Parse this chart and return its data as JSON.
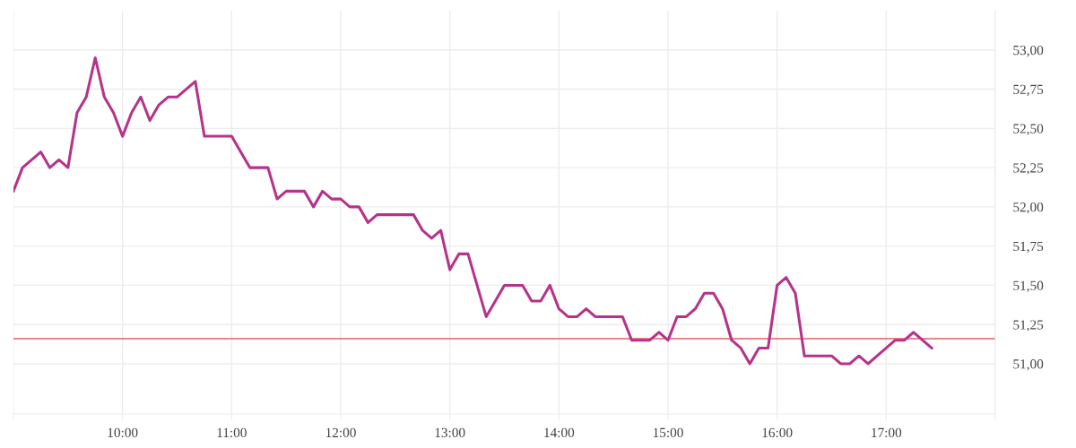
{
  "chart_data": {
    "type": "line",
    "x": [
      9.0,
      9.083,
      9.167,
      9.25,
      9.333,
      9.417,
      9.5,
      9.583,
      9.667,
      9.75,
      9.833,
      9.917,
      10.0,
      10.083,
      10.167,
      10.25,
      10.333,
      10.417,
      10.5,
      10.583,
      10.667,
      10.75,
      10.833,
      10.917,
      11.0,
      11.083,
      11.167,
      11.25,
      11.333,
      11.417,
      11.5,
      11.583,
      11.667,
      11.75,
      11.833,
      11.917,
      12.0,
      12.083,
      12.167,
      12.25,
      12.333,
      12.417,
      12.5,
      12.583,
      12.667,
      12.75,
      12.833,
      12.917,
      13.0,
      13.083,
      13.167,
      13.25,
      13.333,
      13.417,
      13.5,
      13.583,
      13.667,
      13.75,
      13.833,
      13.917,
      14.0,
      14.083,
      14.167,
      14.25,
      14.333,
      14.417,
      14.5,
      14.583,
      14.667,
      14.75,
      14.833,
      14.917,
      15.0,
      15.083,
      15.167,
      15.25,
      15.333,
      15.417,
      15.5,
      15.583,
      15.667,
      15.75,
      15.833,
      15.917,
      16.0,
      16.083,
      16.167,
      16.25,
      16.333,
      16.417,
      16.5,
      16.583,
      16.667,
      16.75,
      16.833,
      16.917,
      17.0,
      17.083,
      17.167,
      17.25,
      17.333,
      17.417
    ],
    "series": [
      {
        "color": "#b5338a",
        "values": [
          52.1,
          52.25,
          52.3,
          52.35,
          52.25,
          52.3,
          52.25,
          52.6,
          52.7,
          52.95,
          52.7,
          52.6,
          52.45,
          52.6,
          52.7,
          52.55,
          52.65,
          52.7,
          52.7,
          52.75,
          52.8,
          52.45,
          52.45,
          52.45,
          52.45,
          52.35,
          52.25,
          52.25,
          52.25,
          52.05,
          52.1,
          52.1,
          52.1,
          52.0,
          52.1,
          52.05,
          52.05,
          52.0,
          52.0,
          51.9,
          51.95,
          51.95,
          51.95,
          51.95,
          51.95,
          51.85,
          51.8,
          51.85,
          51.6,
          51.7,
          51.7,
          51.5,
          51.3,
          51.4,
          51.5,
          51.5,
          51.5,
          51.4,
          51.4,
          51.5,
          51.35,
          51.3,
          51.3,
          51.35,
          51.3,
          51.3,
          51.3,
          51.3,
          51.15,
          51.15,
          51.15,
          51.2,
          51.15,
          51.3,
          51.3,
          51.35,
          51.45,
          51.45,
          51.35,
          51.15,
          51.1,
          51.0,
          51.1,
          51.1,
          51.5,
          51.55,
          51.45,
          51.05,
          51.05,
          51.05,
          51.05,
          51.0,
          51.0,
          51.05,
          51.0,
          51.05,
          51.1,
          51.15,
          51.15,
          51.2,
          51.15,
          51.1
        ]
      }
    ],
    "xlim": [
      9,
      18
    ],
    "xticks": [
      {
        "value": 9,
        "label": null
      },
      {
        "value": 10,
        "label": "10:00"
      },
      {
        "value": 11,
        "label": "11:00"
      },
      {
        "value": 12,
        "label": "12:00"
      },
      {
        "value": 13,
        "label": "13:00"
      },
      {
        "value": 14,
        "label": "14:00"
      },
      {
        "value": 15,
        "label": "15:00"
      },
      {
        "value": 16,
        "label": "16:00"
      },
      {
        "value": 17,
        "label": "17:00"
      },
      {
        "value": 18,
        "label": null
      }
    ],
    "ylim": [
      50.68,
      53.25
    ],
    "yticks": [
      {
        "value": 51,
        "label": "51,00"
      },
      {
        "value": 51.25,
        "label": "51,25"
      },
      {
        "value": 51.5,
        "label": "51,50"
      },
      {
        "value": 51.75,
        "label": "51,75"
      },
      {
        "value": 52,
        "label": "52,00"
      },
      {
        "value": 52.25,
        "label": "52,25"
      },
      {
        "value": 52.5,
        "label": "52,50"
      },
      {
        "value": 52.75,
        "label": "52,75"
      },
      {
        "value": 53,
        "label": "53,00"
      }
    ],
    "ref_lines": [
      {
        "axis": "y",
        "value": 51.16,
        "color": "#e06060"
      }
    ],
    "grid": true,
    "legend": false,
    "line_style": "solid",
    "marker": "none"
  }
}
